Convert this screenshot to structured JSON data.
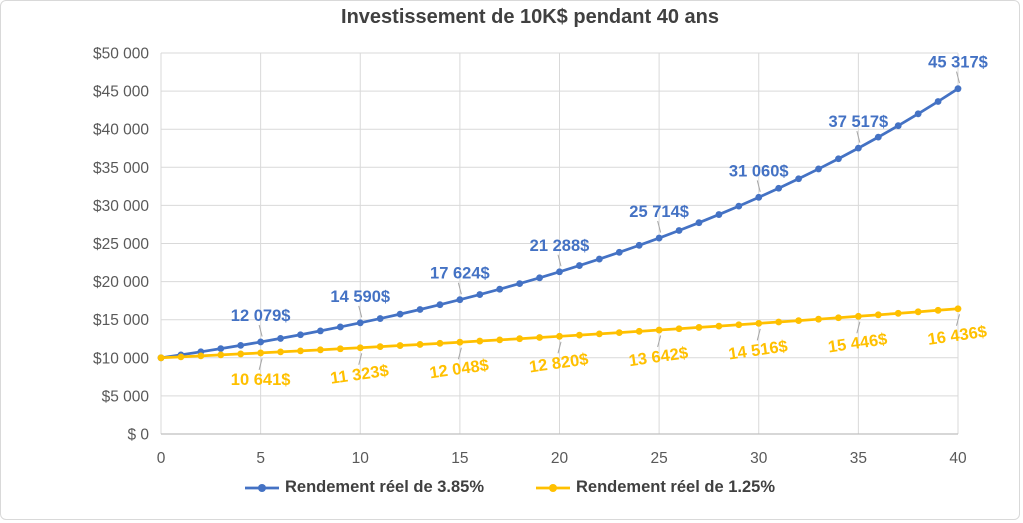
{
  "chart_data": {
    "type": "line",
    "title": "Investissement de 10K$ pendant 40 ans",
    "xlabel": "",
    "ylabel": "",
    "xlim": [
      0,
      40
    ],
    "ylim": [
      0,
      50000
    ],
    "grid": true,
    "legend_position": "bottom",
    "x_ticks": [
      0,
      5,
      10,
      15,
      20,
      25,
      30,
      35,
      40
    ],
    "y_tick_values": [
      0,
      5000,
      10000,
      15000,
      20000,
      25000,
      30000,
      35000,
      40000,
      45000,
      50000
    ],
    "y_tick_labels": [
      "$ 0",
      "$5 000",
      "$10 000",
      "$15 000",
      "$20 000",
      "$25 000",
      "$30 000",
      "$35 000",
      "$40 000",
      "$45 000",
      "$50 000"
    ],
    "x": [
      0,
      1,
      2,
      3,
      4,
      5,
      6,
      7,
      8,
      9,
      10,
      11,
      12,
      13,
      14,
      15,
      16,
      17,
      18,
      19,
      20,
      21,
      22,
      23,
      24,
      25,
      26,
      27,
      28,
      29,
      30,
      31,
      32,
      33,
      34,
      35,
      36,
      37,
      38,
      39,
      40
    ],
    "series": [
      {
        "name": "Rendement réel de 3.85%",
        "color": "#4472C4",
        "label_side": "above",
        "values": [
          10000,
          10385,
          10785,
          11200,
          11631,
          12079,
          12544,
          13027,
          13529,
          14049,
          14590,
          15152,
          15735,
          16341,
          16970,
          17624,
          18302,
          19007,
          19739,
          20499,
          21288,
          22107,
          22958,
          23842,
          24760,
          25714,
          26704,
          27732,
          28799,
          29908,
          31060,
          32255,
          33497,
          34787,
          36126,
          37517,
          38961,
          40461,
          42019,
          43637,
          45317
        ],
        "data_labels": [
          {
            "x": 5,
            "text": "12 079$",
            "rot": 0
          },
          {
            "x": 10,
            "text": "14 590$",
            "rot": 0
          },
          {
            "x": 15,
            "text": "17 624$",
            "rot": 0
          },
          {
            "x": 20,
            "text": "21 288$",
            "rot": 0
          },
          {
            "x": 25,
            "text": "25 714$",
            "rot": 0
          },
          {
            "x": 30,
            "text": "31 060$",
            "rot": 0
          },
          {
            "x": 35,
            "text": "37 517$",
            "rot": 0
          },
          {
            "x": 40,
            "text": "45 317$",
            "rot": 0
          }
        ]
      },
      {
        "name": "Rendement réel de 1.25%",
        "color": "#FFC000",
        "label_side": "below",
        "values": [
          10000,
          10125,
          10252,
          10380,
          10509,
          10641,
          10774,
          10909,
          11045,
          11183,
          11323,
          11465,
          11608,
          11753,
          11900,
          12048,
          12199,
          12351,
          12506,
          12662,
          12820,
          12980,
          13143,
          13307,
          13473,
          13642,
          13812,
          13985,
          14160,
          14337,
          14516,
          14698,
          14881,
          15067,
          15256,
          15446,
          15639,
          15835,
          16033,
          16233,
          16436
        ],
        "data_labels": [
          {
            "x": 5,
            "text": "10 641$",
            "rot": 0
          },
          {
            "x": 10,
            "text": "11 323$",
            "rot": -8
          },
          {
            "x": 15,
            "text": "12 048$",
            "rot": -8
          },
          {
            "x": 20,
            "text": "12 820$",
            "rot": -8
          },
          {
            "x": 25,
            "text": "13 642$",
            "rot": -8
          },
          {
            "x": 30,
            "text": "14 516$",
            "rot": -8
          },
          {
            "x": 35,
            "text": "15 446$",
            "rot": -8
          },
          {
            "x": 40,
            "text": "16 436$",
            "rot": -8
          }
        ]
      }
    ]
  },
  "colors": {
    "title_text": "#404040",
    "axis_text": "#595959",
    "gridline": "#D9D9D9",
    "axis_line": "#BFBFBF",
    "leader_line": "#A6A6A6",
    "chart_border": "#D9D9D9",
    "background": "#FFFFFF"
  }
}
